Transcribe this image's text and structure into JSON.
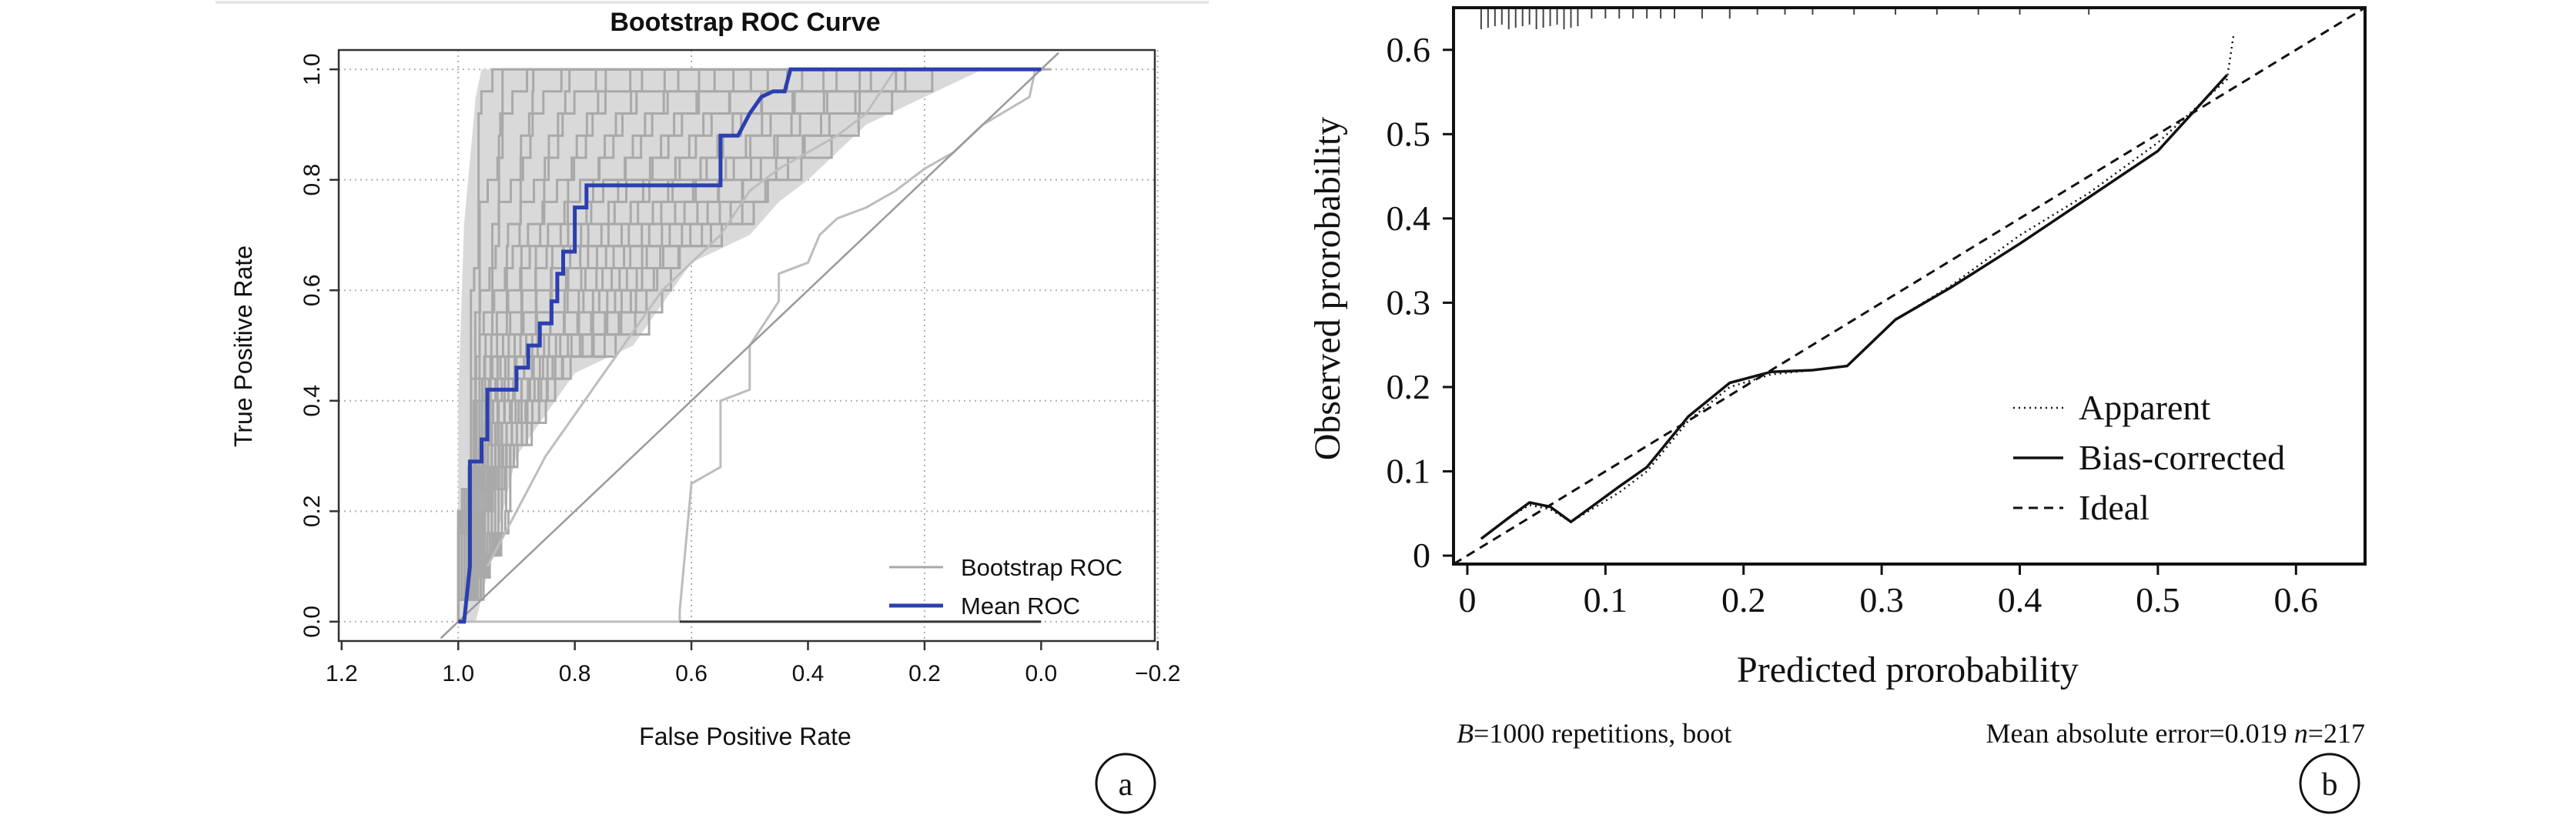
{
  "chart_data": [
    {
      "id": "a",
      "type": "line",
      "panel_label": "a",
      "title": "Bootstrap ROC Curve",
      "xlabel": "False Positive Rate",
      "ylabel": "True Positive Rate",
      "x_reversed": true,
      "xlim": [
        1.2,
        -0.2
      ],
      "ylim": [
        0.0,
        1.0
      ],
      "xticks": [
        1.2,
        1.0,
        0.8,
        0.6,
        0.4,
        0.2,
        0.0,
        -0.2
      ],
      "xtick_labels": [
        "1.2",
        "1.0",
        "0.8",
        "0.6",
        "0.4",
        "0.2",
        "0.0",
        "−0.2"
      ],
      "yticks": [
        0.0,
        0.2,
        0.4,
        0.6,
        0.8,
        1.0
      ],
      "ytick_labels": [
        "0.0",
        "0.2",
        "0.4",
        "0.6",
        "0.8",
        "1.0"
      ],
      "grid": true,
      "legend_position": "bottom-right",
      "colors": {
        "bootstrap": "#a9a9a9",
        "mean": "#2b3fb0",
        "fill": "#d9d9d9"
      },
      "series": [
        {
          "name": "Mean ROC",
          "points": [
            [
              1.0,
              0.0
            ],
            [
              0.99,
              0.0
            ],
            [
              0.98,
              0.1
            ],
            [
              0.98,
              0.29
            ],
            [
              0.96,
              0.29
            ],
            [
              0.96,
              0.33
            ],
            [
              0.95,
              0.33
            ],
            [
              0.95,
              0.42
            ],
            [
              0.9,
              0.42
            ],
            [
              0.9,
              0.46
            ],
            [
              0.88,
              0.46
            ],
            [
              0.88,
              0.5
            ],
            [
              0.86,
              0.5
            ],
            [
              0.86,
              0.54
            ],
            [
              0.84,
              0.54
            ],
            [
              0.84,
              0.58
            ],
            [
              0.83,
              0.58
            ],
            [
              0.83,
              0.63
            ],
            [
              0.82,
              0.63
            ],
            [
              0.82,
              0.67
            ],
            [
              0.8,
              0.67
            ],
            [
              0.8,
              0.75
            ],
            [
              0.78,
              0.75
            ],
            [
              0.78,
              0.79
            ],
            [
              0.55,
              0.79
            ],
            [
              0.55,
              0.88
            ],
            [
              0.52,
              0.88
            ],
            [
              0.5,
              0.92
            ],
            [
              0.48,
              0.95
            ],
            [
              0.46,
              0.96
            ],
            [
              0.44,
              0.96
            ],
            [
              0.43,
              1.0
            ],
            [
              0.0,
              1.0
            ]
          ]
        },
        {
          "name": "Bootstrap ROC",
          "envelope_upper": [
            [
              1.0,
              0.0
            ],
            [
              1.0,
              0.4
            ],
            [
              0.99,
              0.72
            ],
            [
              0.97,
              0.95
            ],
            [
              0.96,
              1.0
            ],
            [
              0.0,
              1.0
            ]
          ],
          "envelope_lower": [
            [
              0.97,
              0.0
            ],
            [
              0.9,
              0.3
            ],
            [
              0.8,
              0.45
            ],
            [
              0.7,
              0.5
            ],
            [
              0.6,
              0.65
            ],
            [
              0.5,
              0.7
            ],
            [
              0.45,
              0.76
            ],
            [
              0.4,
              0.8
            ],
            [
              0.35,
              0.85
            ],
            [
              0.3,
              0.9
            ],
            [
              0.2,
              0.95
            ],
            [
              0.1,
              1.0
            ]
          ],
          "notable_outliers": [
            [
              [
                1.0,
                0.0
              ],
              [
                0.62,
                0.0
              ],
              [
                0.62,
                0.02
              ],
              [
                0.6,
                0.25
              ],
              [
                0.55,
                0.28
              ],
              [
                0.55,
                0.4
              ],
              [
                0.5,
                0.42
              ],
              [
                0.5,
                0.5
              ],
              [
                0.45,
                0.58
              ],
              [
                0.45,
                0.63
              ],
              [
                0.4,
                0.65
              ],
              [
                0.38,
                0.7
              ],
              [
                0.35,
                0.73
              ],
              [
                0.3,
                0.75
              ],
              [
                0.25,
                0.78
              ],
              [
                0.2,
                0.82
              ],
              [
                0.15,
                0.85
              ],
              [
                0.1,
                0.9
              ],
              [
                0.02,
                0.95
              ],
              [
                0.01,
                1.0
              ]
            ],
            [
              [
                0.95,
                0.1
              ],
              [
                0.85,
                0.3
              ],
              [
                0.75,
                0.45
              ],
              [
                0.65,
                0.6
              ],
              [
                0.55,
                0.7
              ],
              [
                0.5,
                0.78
              ],
              [
                0.45,
                0.82
              ],
              [
                0.35,
                0.88
              ],
              [
                0.3,
                0.92
              ],
              [
                0.25,
                1.0
              ]
            ]
          ]
        },
        {
          "name": "diagonal",
          "points": [
            [
              1.0,
              0.0
            ],
            [
              0.0,
              1.0
            ]
          ]
        }
      ],
      "legend": [
        "Bootstrap ROC",
        "Mean ROC"
      ]
    },
    {
      "id": "b",
      "type": "line",
      "panel_label": "b",
      "xlabel": "Predicted prorobability",
      "ylabel": "Observed prorobability",
      "xlim": [
        -0.01,
        0.65
      ],
      "ylim": [
        -0.01,
        0.65
      ],
      "xticks": [
        0,
        0.1,
        0.2,
        0.3,
        0.4,
        0.5,
        0.6
      ],
      "xtick_labels": [
        "0",
        "0.1",
        "0.2",
        "0.3",
        "0.4",
        "0.5",
        "0.6"
      ],
      "yticks": [
        0,
        0.1,
        0.2,
        0.3,
        0.4,
        0.5,
        0.6
      ],
      "ytick_labels": [
        "0",
        "0.1",
        "0.2",
        "0.3",
        "0.4",
        "0.5",
        "0.6"
      ],
      "grid": false,
      "legend_position": "bottom-right",
      "rug_top": [
        0.01,
        0.015,
        0.02,
        0.025,
        0.03,
        0.035,
        0.04,
        0.045,
        0.05,
        0.055,
        0.06,
        0.065,
        0.07,
        0.075,
        0.08,
        0.09,
        0.1,
        0.11,
        0.12,
        0.13,
        0.14,
        0.15,
        0.17,
        0.19,
        0.21,
        0.23,
        0.25,
        0.28,
        0.31,
        0.34,
        0.37,
        0.4,
        0.45
      ],
      "series": [
        {
          "name": "Apparent",
          "style": "dotted",
          "points": [
            [
              0.01,
              0.02
            ],
            [
              0.03,
              0.045
            ],
            [
              0.045,
              0.06
            ],
            [
              0.06,
              0.055
            ],
            [
              0.075,
              0.04
            ],
            [
              0.09,
              0.055
            ],
            [
              0.11,
              0.075
            ],
            [
              0.13,
              0.1
            ],
            [
              0.16,
              0.16
            ],
            [
              0.19,
              0.2
            ],
            [
              0.22,
              0.215
            ],
            [
              0.25,
              0.22
            ],
            [
              0.275,
              0.225
            ],
            [
              0.31,
              0.28
            ],
            [
              0.35,
              0.32
            ],
            [
              0.4,
              0.38
            ],
            [
              0.45,
              0.43
            ],
            [
              0.5,
              0.49
            ],
            [
              0.55,
              0.565
            ],
            [
              0.555,
              0.62
            ]
          ]
        },
        {
          "name": "Bias-corrected",
          "style": "solid",
          "points": [
            [
              0.01,
              0.02
            ],
            [
              0.03,
              0.045
            ],
            [
              0.045,
              0.063
            ],
            [
              0.06,
              0.058
            ],
            [
              0.075,
              0.04
            ],
            [
              0.09,
              0.058
            ],
            [
              0.11,
              0.082
            ],
            [
              0.13,
              0.105
            ],
            [
              0.16,
              0.165
            ],
            [
              0.19,
              0.205
            ],
            [
              0.22,
              0.218
            ],
            [
              0.25,
              0.22
            ],
            [
              0.275,
              0.225
            ],
            [
              0.31,
              0.28
            ],
            [
              0.35,
              0.318
            ],
            [
              0.4,
              0.37
            ],
            [
              0.45,
              0.425
            ],
            [
              0.5,
              0.48
            ],
            [
              0.55,
              0.57
            ]
          ]
        },
        {
          "name": "Ideal",
          "style": "dashed",
          "points": [
            [
              -0.01,
              -0.01
            ],
            [
              0.65,
              0.65
            ]
          ]
        }
      ],
      "legend": [
        "Apparent",
        "Bias-corrected",
        "Ideal"
      ],
      "footnote_left": {
        "b_italic": "B",
        "rest": "=1000 repetitions, boot"
      },
      "footnote_right": {
        "prefix": "Mean absolute error=0.019 ",
        "n_italic": "n",
        "suffix": "=217"
      }
    }
  ]
}
